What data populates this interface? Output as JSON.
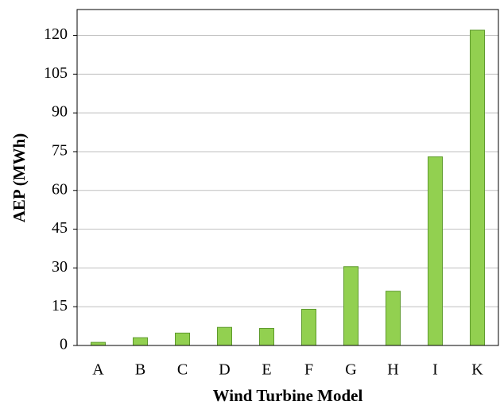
{
  "chart_data": {
    "type": "bar",
    "x_label": "Wind Turbine Model",
    "y_label": "AEP (MWh)",
    "categories": [
      "A",
      "B",
      "C",
      "D",
      "E",
      "F",
      "G",
      "H",
      "I",
      "K"
    ],
    "values": [
      1.2,
      3,
      4.8,
      7,
      6.6,
      14,
      30.5,
      21,
      73,
      122
    ],
    "color": "#92d050",
    "edge_color": "#5e9a2c",
    "ylim": [
      0,
      130
    ],
    "yticks": [
      0,
      15,
      30,
      45,
      60,
      75,
      90,
      105,
      120
    ],
    "grid": true
  }
}
